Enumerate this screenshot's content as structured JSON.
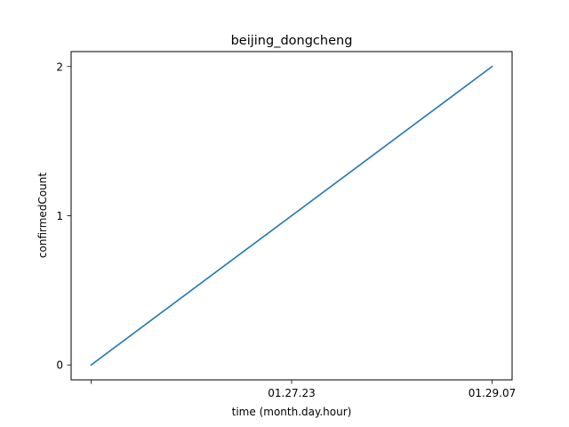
{
  "chart_data": {
    "type": "line",
    "title": "beijing_dongcheng",
    "xlabel": "time (month.day.hour)",
    "ylabel": "confirmedCount",
    "x_ticks": [
      "",
      "01.27.23",
      "01.29.07"
    ],
    "y_ticks": [
      "0",
      "1",
      "2"
    ],
    "x": [
      "",
      "01.27.23",
      "01.29.07"
    ],
    "series": [
      {
        "values": [
          0,
          1,
          2
        ],
        "color": "#1f77b4"
      }
    ],
    "ylim": [
      -0.1,
      2.1
    ],
    "grid": false,
    "legend": "none"
  }
}
